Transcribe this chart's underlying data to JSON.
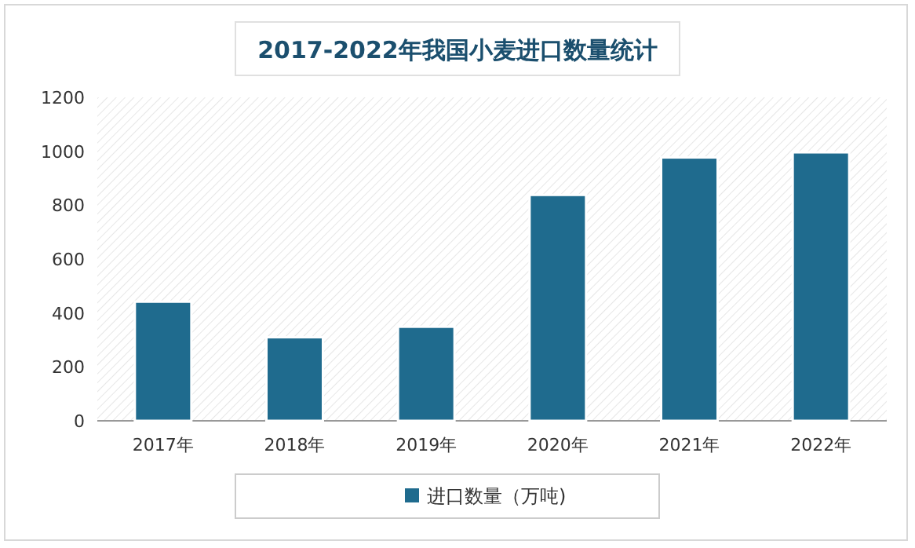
{
  "chart_data": {
    "type": "bar",
    "title": "2017-2022年我国小麦进口数量统计",
    "categories": [
      "2017年",
      "2018年",
      "2019年",
      "2020年",
      "2021年",
      "2022年"
    ],
    "series": [
      {
        "name": "进口数量（万吨)",
        "color": "#1f6b8e",
        "values": [
          442,
          310,
          349,
          838,
          977,
          996
        ]
      }
    ],
    "ylim": [
      0,
      1200
    ],
    "yticks": [
      0,
      200,
      400,
      600,
      800,
      1000,
      1200
    ],
    "grid": false,
    "legend": "bottom"
  }
}
